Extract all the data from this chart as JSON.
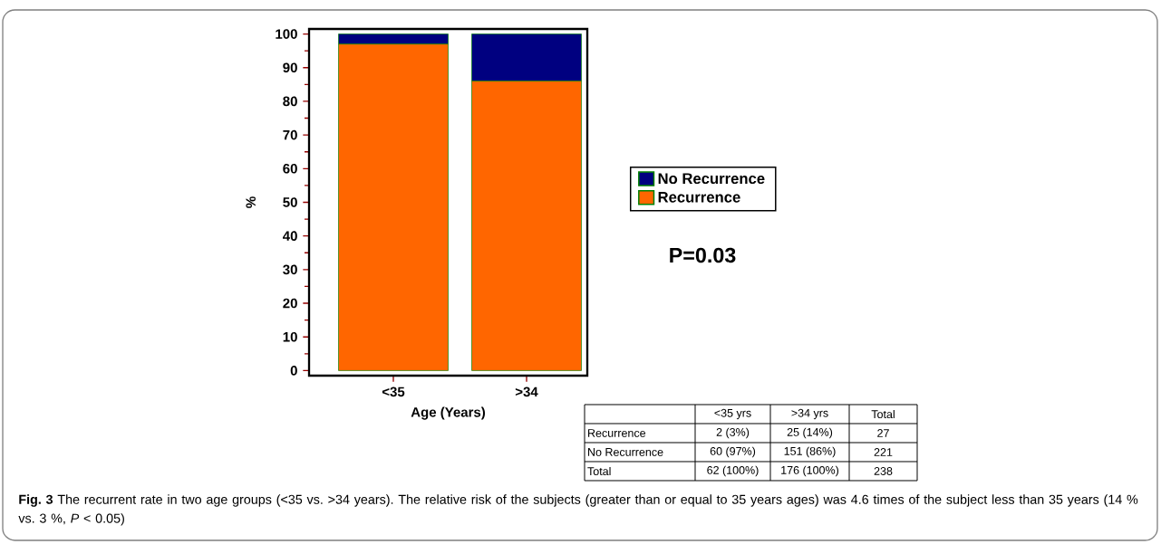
{
  "chart_data": {
    "type": "bar",
    "stacked": true,
    "categories": [
      "<35",
      ">34"
    ],
    "series": [
      {
        "name": "Recurrence",
        "color": "#ff6600",
        "values": [
          97,
          86
        ]
      },
      {
        "name": "No Recurrence",
        "color": "#000080",
        "values": [
          3,
          14
        ]
      }
    ],
    "ylim": [
      -1.5,
      101.5
    ],
    "yticks": [
      0,
      10,
      20,
      30,
      40,
      50,
      60,
      70,
      80,
      90,
      100
    ],
    "ylabel": "%",
    "xlabel": "Age (Years)",
    "legend": "right",
    "annotations": [
      "P=0.03",
      "<35 yrs",
      ">34 yrs",
      "Total",
      "Recurrence",
      "2 (3%)",
      "25 (14%)",
      "27",
      "No Recurrence",
      "60 (97%)",
      "151 (86%)",
      "221",
      "Total",
      "62 (100%)",
      "176 (100%)",
      "238",
      "**Fig. 3** The recurrent rate in two age groups (<35 vs. >34 years). The relative risk of the subjects (greater than or equal to 35 years ages) was 4.6 times of the subject less than 35 years (14 % vs. 3 %, *P* < 0.05)"
    ]
  }
}
